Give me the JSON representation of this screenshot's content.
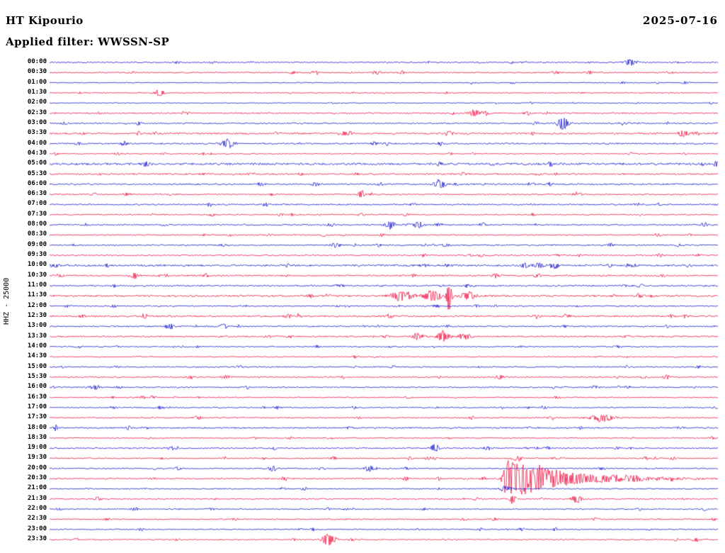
{
  "header": {
    "station": "HT Kipourio",
    "date": "2025-07-16",
    "filter": "Applied filter: WWSSN-SP",
    "scale": "HHZ - 25000"
  },
  "chart_data": {
    "type": "line",
    "subtype": "helicorder",
    "title": "HT Kipourio",
    "date": "2025-07-16",
    "filter": "WWSSN-SP",
    "channel_scale": "HHZ - 25000",
    "minutes_per_line": 30,
    "legend_position": "none",
    "grid": false,
    "colors": {
      "blue": "#1619ce",
      "red": "#ed1443"
    },
    "rows": [
      {
        "label": "00:00",
        "color": "blue",
        "noise": 0.7,
        "events": [
          {
            "x": 0.869,
            "amp": 4.5,
            "w": 7
          },
          {
            "x": 0.244,
            "amp": 1.6,
            "w": 4
          }
        ]
      },
      {
        "label": "00:30",
        "color": "red",
        "noise": 0.8,
        "events": [
          {
            "x": 0.757,
            "amp": 2.2,
            "w": 5
          },
          {
            "x": 0.45,
            "amp": 1.4,
            "w": 4
          }
        ]
      },
      {
        "label": "01:00",
        "color": "blue",
        "noise": 0.55,
        "events": []
      },
      {
        "label": "01:30",
        "color": "red",
        "noise": 0.6,
        "events": [
          {
            "x": 0.164,
            "amp": 5,
            "w": 5
          }
        ]
      },
      {
        "label": "02:00",
        "color": "blue",
        "noise": 0.6,
        "events": [
          {
            "x": 0.42,
            "amp": 1.2,
            "w": 4
          }
        ]
      },
      {
        "label": "02:30",
        "color": "red",
        "noise": 0.85,
        "events": [
          {
            "x": 0.636,
            "amp": 4.5,
            "w": 7
          },
          {
            "x": 0.715,
            "amp": 2.6,
            "w": 5
          }
        ]
      },
      {
        "label": "03:00",
        "color": "blue",
        "noise": 0.9,
        "events": [
          {
            "x": 0.768,
            "amp": 9,
            "w": 6
          },
          {
            "x": 0.726,
            "amp": 3,
            "w": 4
          },
          {
            "x": 0.86,
            "amp": 2,
            "w": 6
          }
        ]
      },
      {
        "label": "03:30",
        "color": "red",
        "noise": 1.1,
        "events": [
          {
            "x": 0.44,
            "amp": 3.5,
            "w": 5
          },
          {
            "x": 0.598,
            "amp": 3.5,
            "w": 5
          },
          {
            "x": 0.948,
            "amp": 4.5,
            "w": 7
          }
        ]
      },
      {
        "label": "04:00",
        "color": "blue",
        "noise": 1.0,
        "events": [
          {
            "x": 0.267,
            "amp": 7,
            "w": 7
          },
          {
            "x": 0.487,
            "amp": 2.6,
            "w": 5
          },
          {
            "x": 0.11,
            "amp": 1.6,
            "w": 4
          }
        ]
      },
      {
        "label": "04:30",
        "color": "red",
        "noise": 0.7,
        "events": [
          {
            "x": 0.6,
            "amp": 1.5,
            "w": 4
          }
        ]
      },
      {
        "label": "05:00",
        "color": "blue",
        "noise": 1.4,
        "events": []
      },
      {
        "label": "05:30",
        "color": "red",
        "noise": 1.0,
        "events": [
          {
            "x": 0.3,
            "amp": 1.6,
            "w": 4
          },
          {
            "x": 0.46,
            "amp": 1.6,
            "w": 4
          }
        ]
      },
      {
        "label": "06:00",
        "color": "blue",
        "noise": 1.0,
        "events": [
          {
            "x": 0.583,
            "amp": 6.5,
            "w": 6
          },
          {
            "x": 0.72,
            "amp": 2,
            "w": 4
          }
        ]
      },
      {
        "label": "06:30",
        "color": "red",
        "noise": 0.9,
        "events": [
          {
            "x": 0.466,
            "amp": 7,
            "w": 3.5
          },
          {
            "x": 0.79,
            "amp": 2.6,
            "w": 5
          },
          {
            "x": 0.115,
            "amp": 2,
            "w": 4
          }
        ]
      },
      {
        "label": "07:00",
        "color": "blue",
        "noise": 0.9,
        "events": [
          {
            "x": 0.323,
            "amp": 2.6,
            "w": 5
          },
          {
            "x": 0.88,
            "amp": 1.6,
            "w": 4
          }
        ]
      },
      {
        "label": "07:30",
        "color": "red",
        "noise": 0.8,
        "events": [
          {
            "x": 0.155,
            "amp": 1.6,
            "w": 4
          },
          {
            "x": 0.345,
            "amp": 1.6,
            "w": 4
          }
        ]
      },
      {
        "label": "08:00",
        "color": "blue",
        "noise": 0.9,
        "events": [
          {
            "x": 0.509,
            "amp": 6,
            "w": 5
          },
          {
            "x": 0.551,
            "amp": 5,
            "w": 6
          },
          {
            "x": 0.17,
            "amp": 1.6,
            "w": 4
          }
        ]
      },
      {
        "label": "08:30",
        "color": "red",
        "noise": 0.7,
        "events": [
          {
            "x": 0.33,
            "amp": 1.3,
            "w": 4
          }
        ]
      },
      {
        "label": "09:00",
        "color": "blue",
        "noise": 0.9,
        "events": [
          {
            "x": 0.428,
            "amp": 3,
            "w": 5
          },
          {
            "x": 0.56,
            "amp": 1.6,
            "w": 4
          }
        ]
      },
      {
        "label": "09:30",
        "color": "red",
        "noise": 0.8,
        "events": [
          {
            "x": 0.561,
            "amp": 2.2,
            "w": 4
          },
          {
            "x": 0.63,
            "amp": 1.6,
            "w": 4
          }
        ]
      },
      {
        "label": "10:00",
        "color": "blue",
        "noise": 1.2,
        "events": [
          {
            "x": 0.73,
            "amp": 4.5,
            "w": 6
          },
          {
            "x": 0.755,
            "amp": 4,
            "w": 5
          },
          {
            "x": 0.873,
            "amp": 2.6,
            "w": 4
          },
          {
            "x": 0.595,
            "amp": 2,
            "w": 4
          }
        ]
      },
      {
        "label": "10:30",
        "color": "red",
        "noise": 1.0,
        "events": [
          {
            "x": 0.127,
            "amp": 4,
            "w": 5
          },
          {
            "x": 0.016,
            "amp": 2.6,
            "w": 4
          }
        ]
      },
      {
        "label": "11:00",
        "color": "blue",
        "noise": 1.0,
        "events": [
          {
            "x": 0.63,
            "amp": 2,
            "w": 4
          },
          {
            "x": 0.86,
            "amp": 1.6,
            "w": 4
          }
        ]
      },
      {
        "label": "11:30",
        "color": "red",
        "noise": 1.2,
        "events": [
          {
            "x": 0.527,
            "amp": 7,
            "w": 11
          },
          {
            "x": 0.573,
            "amp": 8,
            "w": 9
          },
          {
            "x": 0.598,
            "amp": 28,
            "w": 2.5
          },
          {
            "x": 0.625,
            "amp": 6,
            "w": 8
          }
        ]
      },
      {
        "label": "12:00",
        "color": "blue",
        "noise": 0.8,
        "events": [
          {
            "x": 0.52,
            "amp": 1.5,
            "w": 4
          }
        ]
      },
      {
        "label": "12:30",
        "color": "red",
        "noise": 1.1,
        "events": [
          {
            "x": 0.37,
            "amp": 2.2,
            "w": 5
          },
          {
            "x": 0.509,
            "amp": 2.6,
            "w": 5
          },
          {
            "x": 0.05,
            "amp": 2,
            "w": 4
          }
        ]
      },
      {
        "label": "13:00",
        "color": "blue",
        "noise": 0.9,
        "events": [
          {
            "x": 0.18,
            "amp": 4.5,
            "w": 5
          },
          {
            "x": 0.26,
            "amp": 3.5,
            "w": 5
          }
        ]
      },
      {
        "label": "13:30",
        "color": "red",
        "noise": 1.0,
        "events": [
          {
            "x": 0.551,
            "amp": 5,
            "w": 6
          },
          {
            "x": 0.588,
            "amp": 9,
            "w": 6
          },
          {
            "x": 0.62,
            "amp": 4,
            "w": 8
          }
        ]
      },
      {
        "label": "14:00",
        "color": "blue",
        "noise": 0.8,
        "events": []
      },
      {
        "label": "14:30",
        "color": "red",
        "noise": 0.7,
        "events": [
          {
            "x": 0.49,
            "amp": 1.2,
            "w": 4
          }
        ]
      },
      {
        "label": "15:00",
        "color": "blue",
        "noise": 0.8,
        "events": [
          {
            "x": 0.1,
            "amp": 2,
            "w": 4
          }
        ]
      },
      {
        "label": "15:30",
        "color": "red",
        "noise": 0.9,
        "events": [
          {
            "x": 0.265,
            "amp": 3.5,
            "w": 5
          }
        ]
      },
      {
        "label": "16:00",
        "color": "blue",
        "noise": 0.8,
        "events": [
          {
            "x": 0.069,
            "amp": 3.5,
            "w": 4
          },
          {
            "x": 0.815,
            "amp": 2,
            "w": 5
          }
        ]
      },
      {
        "label": "16:30",
        "color": "red",
        "noise": 0.7,
        "events": []
      },
      {
        "label": "17:00",
        "color": "blue",
        "noise": 0.8,
        "events": [
          {
            "x": 0.095,
            "amp": 2,
            "w": 4
          },
          {
            "x": 0.34,
            "amp": 2,
            "w": 4
          },
          {
            "x": 0.74,
            "amp": 2.6,
            "w": 4
          }
        ]
      },
      {
        "label": "17:30",
        "color": "red",
        "noise": 0.8,
        "events": [
          {
            "x": 0.826,
            "amp": 5,
            "w": 13
          }
        ]
      },
      {
        "label": "18:00",
        "color": "blue",
        "noise": 0.9,
        "events": [
          {
            "x": 0.45,
            "amp": 1.5,
            "w": 6
          }
        ]
      },
      {
        "label": "18:30",
        "color": "red",
        "noise": 0.7,
        "events": []
      },
      {
        "label": "19:00",
        "color": "blue",
        "noise": 0.8,
        "events": [
          {
            "x": 0.19,
            "amp": 2,
            "w": 4
          },
          {
            "x": 0.577,
            "amp": 5.5,
            "w": 4
          }
        ]
      },
      {
        "label": "19:30",
        "color": "red",
        "noise": 0.8,
        "events": [
          {
            "x": 0.7,
            "amp": 4,
            "w": 5
          },
          {
            "x": 0.905,
            "amp": 2,
            "w": 4
          }
        ]
      },
      {
        "label": "20:00",
        "color": "blue",
        "noise": 0.8,
        "events": [
          {
            "x": 0.334,
            "amp": 4.5,
            "w": 4
          },
          {
            "x": 0.477,
            "amp": 4.5,
            "w": 5
          }
        ]
      },
      {
        "label": "20:30",
        "color": "red",
        "noise": 0.9,
        "events": [
          {
            "x": 0.683,
            "amp": 26,
            "w": 3,
            "decay": 80
          },
          {
            "x": 0.73,
            "amp": 6,
            "w": 18
          },
          {
            "x": 0.86,
            "amp": 2.5,
            "w": 25
          }
        ]
      },
      {
        "label": "21:00",
        "color": "blue",
        "noise": 0.8,
        "events": [
          {
            "x": 0.684,
            "amp": 3,
            "w": 6
          }
        ]
      },
      {
        "label": "21:30",
        "color": "red",
        "noise": 0.8,
        "events": [
          {
            "x": 0.693,
            "amp": 7,
            "w": 3.5
          },
          {
            "x": 0.789,
            "amp": 6,
            "w": 5
          }
        ]
      },
      {
        "label": "22:00",
        "color": "blue",
        "noise": 0.7,
        "events": [
          {
            "x": 0.127,
            "amp": 2.6,
            "w": 4
          }
        ]
      },
      {
        "label": "22:30",
        "color": "red",
        "noise": 0.7,
        "events": []
      },
      {
        "label": "23:00",
        "color": "blue",
        "noise": 0.7,
        "events": [
          {
            "x": 0.55,
            "amp": 1.2,
            "w": 4
          }
        ]
      },
      {
        "label": "23:30",
        "color": "red",
        "noise": 0.8,
        "events": [
          {
            "x": 0.418,
            "amp": 9,
            "w": 7
          }
        ]
      }
    ]
  }
}
